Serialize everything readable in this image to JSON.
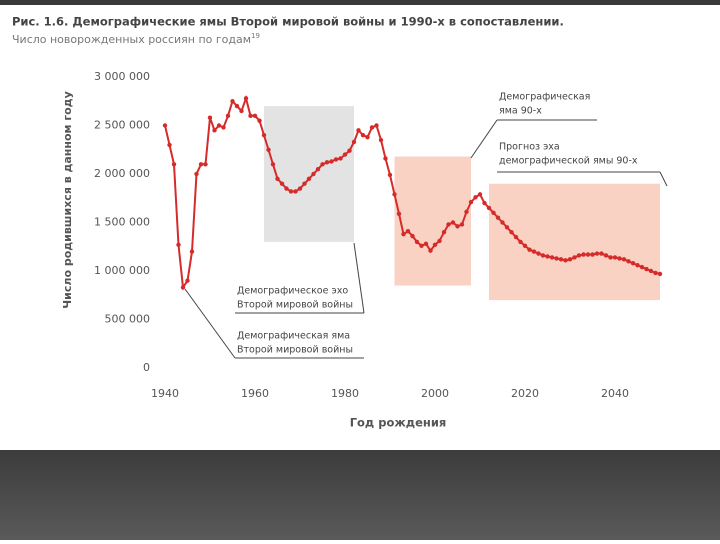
{
  "chart_data": {
    "type": "line",
    "title": "Рис. 1.6. Демографические ямы Второй мировой войны и 1990-х в сопоставлении.",
    "subtitle": "Число новорожденных россиян по годам",
    "subtitle_note": "19",
    "y_label": "Число родившихся в данном году",
    "x_label": "Год рождения",
    "color": "#d62b2b",
    "x": [
      1940,
      1941,
      1942,
      1943,
      1944,
      1945,
      1946,
      1947,
      1948,
      1949,
      1950,
      1951,
      1952,
      1953,
      1954,
      1955,
      1956,
      1957,
      1958,
      1959,
      1960,
      1961,
      1962,
      1963,
      1964,
      1965,
      1966,
      1967,
      1968,
      1969,
      1970,
      1971,
      1972,
      1973,
      1974,
      1975,
      1976,
      1977,
      1978,
      1979,
      1980,
      1981,
      1982,
      1983,
      1984,
      1985,
      1986,
      1987,
      1988,
      1989,
      1990,
      1991,
      1992,
      1993,
      1994,
      1995,
      1996,
      1997,
      1998,
      1999,
      2000,
      2001,
      2002,
      2003,
      2004,
      2005,
      2006,
      2007,
      2008,
      2009,
      2010,
      2011,
      2012,
      2013,
      2014,
      2015,
      2016,
      2017,
      2018,
      2019,
      2020,
      2021,
      2022,
      2023,
      2024,
      2025,
      2026,
      2027,
      2028,
      2029,
      2030,
      2031,
      2032,
      2033,
      2034,
      2035,
      2036,
      2037,
      2038,
      2039,
      2040,
      2041,
      2042,
      2043,
      2044,
      2045,
      2046,
      2047,
      2048,
      2049,
      2050
    ],
    "values": [
      2500000,
      2300000,
      2100000,
      1270000,
      830000,
      900000,
      1200000,
      2000000,
      2100000,
      2100000,
      2580000,
      2450000,
      2500000,
      2480000,
      2600000,
      2750000,
      2700000,
      2650000,
      2780000,
      2600000,
      2600000,
      2550000,
      2400000,
      2250000,
      2100000,
      1950000,
      1900000,
      1850000,
      1820000,
      1820000,
      1850000,
      1900000,
      1950000,
      2000000,
      2050000,
      2100000,
      2120000,
      2130000,
      2150000,
      2160000,
      2200000,
      2240000,
      2330000,
      2450000,
      2400000,
      2380000,
      2480000,
      2500000,
      2350000,
      2160000,
      1990000,
      1790000,
      1590000,
      1380000,
      1410000,
      1360000,
      1300000,
      1260000,
      1280000,
      1210000,
      1270000,
      1310000,
      1400000,
      1480000,
      1500000,
      1460000,
      1480000,
      1610000,
      1710000,
      1760000,
      1790000,
      1700000,
      1650000,
      1600000,
      1550000,
      1500000,
      1450000,
      1400000,
      1350000,
      1300000,
      1260000,
      1220000,
      1200000,
      1180000,
      1160000,
      1150000,
      1140000,
      1130000,
      1120000,
      1110000,
      1120000,
      1140000,
      1160000,
      1170000,
      1170000,
      1170000,
      1180000,
      1180000,
      1160000,
      1140000,
      1140000,
      1130000,
      1120000,
      1100000,
      1080000,
      1060000,
      1040000,
      1020000,
      1000000,
      980000,
      970000
    ],
    "xlim": [
      1940,
      2050
    ],
    "xticks": [
      1940,
      1960,
      1980,
      2000,
      2020,
      2040
    ],
    "ylim": [
      0,
      3000000
    ],
    "yticks": [
      0,
      {
        "value": 500000,
        "label": "500 000"
      },
      {
        "value": 1000000,
        "label": "1 000 000"
      },
      {
        "value": 1500000,
        "label": "1 500 000"
      },
      {
        "value": 2000000,
        "label": "2 000 000"
      },
      {
        "value": 2500000,
        "label": "2 500 000"
      },
      {
        "value": 3000000,
        "label": "3 000 000"
      }
    ],
    "highlights": [
      {
        "xlim": [
          1962,
          1982
        ],
        "ylim": [
          1300000,
          2700000
        ],
        "color": "#e3e3e3"
      },
      {
        "xlim": [
          1991,
          2008
        ],
        "ylim": [
          850000,
          2180000
        ],
        "color": "#f9d2c4"
      },
      {
        "xlim": [
          2012,
          2050
        ],
        "ylim": [
          700000,
          1900000
        ],
        "color": "#f9d2c4"
      }
    ],
    "annotations": [
      {
        "lines": [
          "Демографическая",
          "яма 90-х"
        ]
      },
      {
        "lines": [
          "Прогноз эха",
          "демографической ямы 90-х"
        ]
      },
      {
        "lines": [
          "Демографическое эхо",
          "Второй мировой войны"
        ]
      },
      {
        "lines": [
          "Демографическая яма",
          "Второй мировой войны"
        ]
      }
    ]
  }
}
